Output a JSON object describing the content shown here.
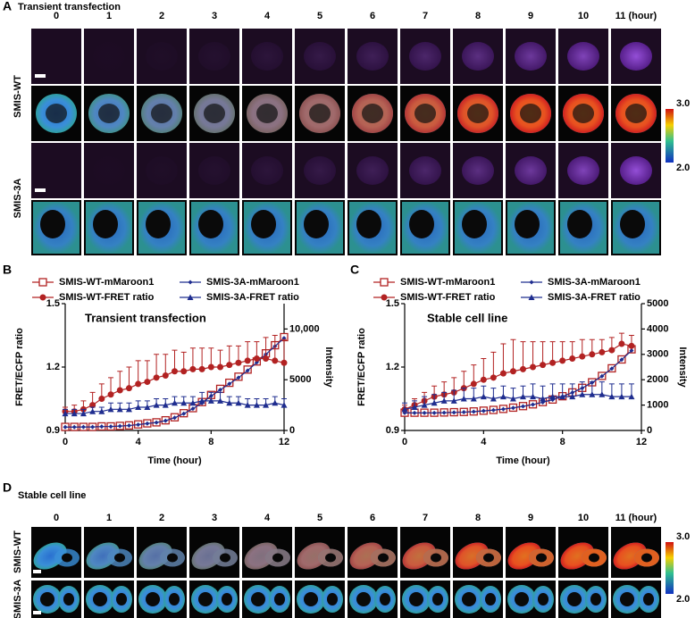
{
  "panel_a": {
    "label": "A",
    "title": "Transient transfection",
    "columns": [
      "0",
      "1",
      "2",
      "3",
      "4",
      "5",
      "6",
      "7",
      "8",
      "9",
      "10",
      "11 (hour)"
    ],
    "rows": [
      "SMIS-WT",
      "SMIS-3A"
    ],
    "colorbar": {
      "max": "3.0",
      "min": "2.0"
    }
  },
  "chart_data": [
    {
      "type": "line",
      "panel": "B",
      "title": "Transient transfection",
      "xlabel": "Time (hour)",
      "ylabel": "FRET/ECFP ratio",
      "y2label": "Intensity",
      "x": [
        0,
        0.5,
        1,
        1.5,
        2,
        2.5,
        3,
        3.5,
        4,
        4.5,
        5,
        5.5,
        6,
        6.5,
        7,
        7.5,
        8,
        8.5,
        9,
        9.5,
        10,
        10.5,
        11,
        11.5,
        12
      ],
      "xlim": [
        0,
        12
      ],
      "xticks": [
        0,
        4,
        8,
        12
      ],
      "ylim": [
        0.9,
        1.5
      ],
      "yticks": [
        0.9,
        1.2,
        1.5
      ],
      "y2lim": [
        0,
        12500
      ],
      "y2ticks": [
        0,
        5000,
        {
          "value": 10000,
          "label": "10,000"
        }
      ],
      "series": [
        {
          "name": "SMIS-WT-mMaroon1",
          "color": "#b22222",
          "marker": "square-open",
          "axis": "y2",
          "values": [
            350,
            350,
            350,
            350,
            400,
            400,
            450,
            500,
            600,
            700,
            800,
            1000,
            1300,
            1700,
            2200,
            2800,
            3500,
            4100,
            4700,
            5300,
            6000,
            6800,
            7600,
            8400,
            9200
          ]
        },
        {
          "name": "SMIS-3A-mMaroon1",
          "color": "#1f2d8f",
          "marker": "diamond",
          "axis": "y2",
          "values": [
            330,
            330,
            340,
            340,
            380,
            390,
            430,
            480,
            570,
            680,
            780,
            960,
            1250,
            1650,
            2150,
            2700,
            3400,
            4000,
            4600,
            5200,
            5900,
            6700,
            7500,
            8300,
            9100
          ]
        },
        {
          "name": "SMIS-WT-FRET ratio",
          "color": "#b22222",
          "marker": "circle",
          "values": [
            0.99,
            0.99,
            1.0,
            1.02,
            1.05,
            1.07,
            1.09,
            1.1,
            1.12,
            1.13,
            1.15,
            1.16,
            1.18,
            1.18,
            1.19,
            1.19,
            1.2,
            1.2,
            1.21,
            1.22,
            1.23,
            1.24,
            1.24,
            1.23,
            1.22
          ],
          "errors": [
            0.02,
            0.03,
            0.04,
            0.06,
            0.07,
            0.08,
            0.09,
            0.1,
            0.11,
            0.1,
            0.11,
            0.1,
            0.1,
            0.09,
            0.1,
            0.1,
            0.09,
            0.08,
            0.09,
            0.08,
            0.09,
            0.08,
            0.1,
            0.12,
            0.11
          ]
        },
        {
          "name": "SMIS-3A-FRET ratio",
          "color": "#1f2d8f",
          "marker": "triangle",
          "values": [
            0.98,
            0.98,
            0.98,
            0.99,
            0.99,
            1.0,
            1.0,
            1.0,
            1.01,
            1.01,
            1.02,
            1.02,
            1.03,
            1.03,
            1.03,
            1.04,
            1.04,
            1.04,
            1.03,
            1.03,
            1.02,
            1.02,
            1.02,
            1.03,
            1.02
          ],
          "errors": [
            0.02,
            0.02,
            0.02,
            0.02,
            0.02,
            0.03,
            0.03,
            0.03,
            0.03,
            0.03,
            0.03,
            0.03,
            0.03,
            0.03,
            0.03,
            0.04,
            0.04,
            0.04,
            0.03,
            0.03,
            0.03,
            0.03,
            0.03,
            0.03,
            0.03
          ]
        }
      ]
    },
    {
      "type": "line",
      "panel": "C",
      "title": "Stable cell line",
      "xlabel": "Time (hour)",
      "ylabel": "FRET/ECFP ratio",
      "y2label": "Intensity",
      "x": [
        0,
        0.5,
        1,
        1.5,
        2,
        2.5,
        3,
        3.5,
        4,
        4.5,
        5,
        5.5,
        6,
        6.5,
        7,
        7.5,
        8,
        8.5,
        9,
        9.5,
        10,
        10.5,
        11,
        11.5
      ],
      "xlim": [
        0,
        12
      ],
      "xticks": [
        0,
        4,
        8,
        12
      ],
      "ylim": [
        0.9,
        1.5
      ],
      "yticks": [
        0.9,
        1.2,
        1.5
      ],
      "y2lim": [
        0,
        5000
      ],
      "y2ticks": [
        0,
        1000,
        2000,
        3000,
        4000,
        5000
      ],
      "series": [
        {
          "name": "SMIS-WT-mMaroon1",
          "color": "#b22222",
          "marker": "square-open",
          "axis": "y2",
          "values": [
            700,
            700,
            700,
            700,
            710,
            720,
            730,
            750,
            780,
            810,
            850,
            900,
            960,
            1030,
            1120,
            1220,
            1350,
            1500,
            1680,
            1900,
            2150,
            2450,
            2800,
            3200
          ]
        },
        {
          "name": "SMIS-3A-mMaroon1",
          "color": "#1f2d8f",
          "marker": "diamond",
          "axis": "y2",
          "values": [
            690,
            690,
            690,
            690,
            700,
            710,
            720,
            740,
            770,
            800,
            840,
            890,
            950,
            1020,
            1110,
            1210,
            1340,
            1490,
            1670,
            1890,
            2140,
            2440,
            2790,
            3150
          ]
        },
        {
          "name": "SMIS-WT-FRET ratio",
          "color": "#b22222",
          "marker": "circle",
          "values": [
            1.0,
            1.02,
            1.04,
            1.06,
            1.07,
            1.08,
            1.1,
            1.12,
            1.14,
            1.15,
            1.17,
            1.18,
            1.19,
            1.2,
            1.21,
            1.22,
            1.23,
            1.24,
            1.25,
            1.26,
            1.27,
            1.28,
            1.31,
            1.3
          ],
          "errors": [
            0.02,
            0.03,
            0.04,
            0.05,
            0.06,
            0.07,
            0.08,
            0.09,
            0.1,
            0.12,
            0.14,
            0.15,
            0.13,
            0.12,
            0.11,
            0.1,
            0.09,
            0.08,
            0.08,
            0.07,
            0.06,
            0.06,
            0.05,
            0.05
          ]
        },
        {
          "name": "SMIS-3A-FRET ratio",
          "color": "#1f2d8f",
          "marker": "triangle",
          "values": [
            1.0,
            1.01,
            1.02,
            1.03,
            1.04,
            1.04,
            1.05,
            1.05,
            1.06,
            1.05,
            1.06,
            1.05,
            1.06,
            1.06,
            1.05,
            1.06,
            1.06,
            1.06,
            1.07,
            1.07,
            1.07,
            1.06,
            1.06,
            1.06
          ],
          "errors": [
            0.03,
            0.03,
            0.04,
            0.04,
            0.04,
            0.05,
            0.05,
            0.05,
            0.05,
            0.05,
            0.05,
            0.05,
            0.05,
            0.06,
            0.06,
            0.06,
            0.06,
            0.06,
            0.06,
            0.06,
            0.06,
            0.06,
            0.06,
            0.06
          ]
        }
      ]
    }
  ],
  "panel_d": {
    "label": "D",
    "title": "Stable cell line",
    "columns": [
      "0",
      "1",
      "2",
      "3",
      "4",
      "5",
      "6",
      "7",
      "8",
      "9",
      "10",
      "11 (hour)"
    ],
    "rows": [
      "SMIS-WT",
      "SMIS-3A"
    ],
    "colorbar": {
      "max": "3.0",
      "min": "2.0"
    }
  }
}
